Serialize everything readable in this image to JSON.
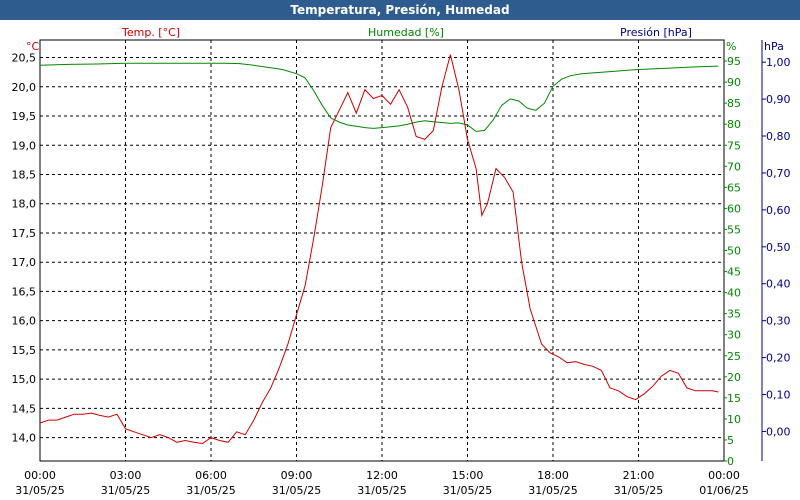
{
  "window": {
    "title": "Temperatura, Presión, Humedad"
  },
  "colors": {
    "temp": "#cc0000",
    "hum": "#008800",
    "pres": "#000088",
    "grid": "#000000",
    "title_bg": "#2e5c8f"
  },
  "chart_data": {
    "type": "line",
    "title": "Temperatura, Presión, Humedad",
    "grid": true,
    "x_ticks": [
      {
        "time": "00:00",
        "date": "31/05/25"
      },
      {
        "time": "03:00",
        "date": "31/05/25"
      },
      {
        "time": "06:00",
        "date": "31/05/25"
      },
      {
        "time": "09:00",
        "date": "31/05/25"
      },
      {
        "time": "12:00",
        "date": "31/05/25"
      },
      {
        "time": "15:00",
        "date": "31/05/25"
      },
      {
        "time": "18:00",
        "date": "31/05/25"
      },
      {
        "time": "21:00",
        "date": "31/05/25"
      },
      {
        "time": "00:00",
        "date": "01/06/25"
      }
    ],
    "axes": {
      "temp": {
        "label": "Temp. [°C]",
        "unit": "°C",
        "min": 13.6,
        "max": 20.8,
        "ticks": [
          "14,0",
          "14,5",
          "15,0",
          "15,5",
          "16,0",
          "16,5",
          "17,0",
          "17,5",
          "18,0",
          "18,5",
          "19,0",
          "19,5",
          "20,0",
          "20,5"
        ]
      },
      "hum": {
        "label": "Humedad [%]",
        "unit": "%",
        "min": 0,
        "max": 100,
        "ticks": [
          "0",
          "5",
          "10",
          "15",
          "20",
          "25",
          "30",
          "35",
          "40",
          "45",
          "50",
          "55",
          "60",
          "65",
          "70",
          "75",
          "80",
          "85",
          "90",
          "95"
        ]
      },
      "pres": {
        "label": "Presión [hPa]",
        "unit": "hPa",
        "min": -0.08,
        "max": 1.06,
        "ticks": [
          "0,00",
          "0,10",
          "0,20",
          "0,30",
          "0,40",
          "0,50",
          "0,60",
          "0,70",
          "0,80",
          "0,90",
          "1,00"
        ]
      }
    },
    "series": [
      {
        "name": "Temp. [°C]",
        "axis": "temp",
        "x_hours": [
          0,
          0.3,
          0.6,
          0.9,
          1.2,
          1.5,
          1.8,
          2.1,
          2.4,
          2.7,
          3.0,
          3.3,
          3.6,
          3.9,
          4.2,
          4.5,
          4.8,
          5.1,
          5.4,
          5.7,
          6.0,
          6.3,
          6.6,
          6.9,
          7.2,
          7.5,
          7.8,
          8.1,
          8.4,
          8.7,
          9.0,
          9.3,
          9.6,
          9.9,
          10.2,
          10.5,
          10.8,
          11.1,
          11.4,
          11.7,
          12.0,
          12.3,
          12.6,
          12.9,
          13.2,
          13.5,
          13.8,
          14.1,
          14.4,
          14.7,
          15.0,
          15.3,
          15.5,
          15.7,
          16.0,
          16.3,
          16.6,
          16.9,
          17.2,
          17.4,
          17.6,
          17.9,
          18.2,
          18.5,
          18.8,
          19.1,
          19.4,
          19.7,
          20.0,
          20.3,
          20.6,
          20.9,
          21.2,
          21.5,
          21.8,
          22.1,
          22.4,
          22.7,
          23.0,
          23.3,
          23.6,
          23.8
        ],
        "values": [
          14.25,
          14.3,
          14.3,
          14.35,
          14.4,
          14.4,
          14.42,
          14.38,
          14.35,
          14.4,
          14.15,
          14.1,
          14.05,
          14.0,
          14.05,
          14.0,
          13.92,
          13.95,
          13.92,
          13.9,
          14.0,
          13.95,
          13.92,
          14.1,
          14.05,
          14.3,
          14.6,
          14.85,
          15.2,
          15.6,
          16.1,
          16.6,
          17.4,
          18.3,
          19.3,
          19.6,
          19.9,
          19.55,
          19.95,
          19.8,
          19.85,
          19.7,
          19.95,
          19.65,
          19.15,
          19.1,
          19.25,
          20.0,
          20.55,
          19.95,
          19.1,
          18.6,
          17.8,
          18.0,
          18.6,
          18.45,
          18.2,
          17.0,
          16.2,
          15.9,
          15.6,
          15.45,
          15.38,
          15.28,
          15.3,
          15.25,
          15.22,
          15.15,
          14.85,
          14.8,
          14.7,
          14.65,
          14.75,
          14.88,
          15.05,
          15.15,
          15.1,
          14.85,
          14.8,
          14.8,
          14.8,
          14.78
        ]
      },
      {
        "name": "Humedad [%]",
        "axis": "hum",
        "x_hours": [
          0,
          1,
          2,
          3,
          4,
          5,
          6,
          6.5,
          7,
          7.5,
          8,
          8.5,
          9,
          9.3,
          9.6,
          9.9,
          10.2,
          10.5,
          10.8,
          11.1,
          11.4,
          11.7,
          12.0,
          12.3,
          12.6,
          12.9,
          13.2,
          13.5,
          13.8,
          14.1,
          14.4,
          14.7,
          15.0,
          15.3,
          15.6,
          15.9,
          16.2,
          16.5,
          16.8,
          17.1,
          17.4,
          17.7,
          18.0,
          18.3,
          18.6,
          19,
          20,
          21,
          22,
          23,
          23.8
        ],
        "values": [
          94,
          94.2,
          94.3,
          94.5,
          94.5,
          94.5,
          94.5,
          94.5,
          94.4,
          94,
          93.5,
          93,
          92,
          91,
          88,
          84.5,
          81.5,
          80.5,
          79.8,
          79.5,
          79.2,
          79,
          79.2,
          79.4,
          79.6,
          80,
          80.5,
          80.8,
          80.6,
          80.4,
          80.2,
          80.3,
          79.8,
          78.3,
          78.5,
          81,
          84.5,
          86,
          85.5,
          83.8,
          83.3,
          85,
          89,
          90.7,
          91.5,
          92,
          92.5,
          93,
          93.3,
          93.6,
          93.8
        ]
      }
    ]
  }
}
